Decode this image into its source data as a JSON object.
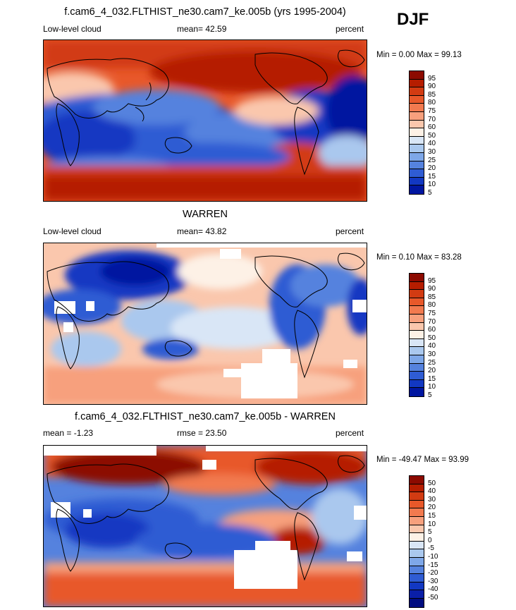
{
  "season": "DJF",
  "panels": [
    {
      "title": "f.cam6_4_032.FLTHIST_ne30.cam7_ke.005b (yrs 1995-2004)",
      "left_label": "Low-level cloud",
      "center_label": "mean=  42.59",
      "right_label": "percent",
      "minmax": "Min =   0.00 Max =  99.13",
      "colorbar": {
        "labels": [
          "95",
          "90",
          "85",
          "80",
          "75",
          "70",
          "60",
          "50",
          "40",
          "30",
          "25",
          "20",
          "15",
          "10",
          "5"
        ],
        "colors": [
          "#8c0a00",
          "#b51d00",
          "#d23b12",
          "#e8582a",
          "#f27a4f",
          "#f7a07d",
          "#fac7ad",
          "#fdf1e6",
          "#d9e6f6",
          "#aac8ee",
          "#7ea7e8",
          "#5582de",
          "#2f5cd3",
          "#1238c2",
          "#0016a0"
        ]
      }
    },
    {
      "title": "WARREN",
      "left_label": "Low-level cloud",
      "center_label": "mean=  43.82",
      "right_label": "percent",
      "minmax": "Min =   0.10 Max =  83.28",
      "colorbar": {
        "labels": [
          "95",
          "90",
          "85",
          "80",
          "75",
          "70",
          "60",
          "50",
          "40",
          "30",
          "25",
          "20",
          "15",
          "10",
          "5"
        ],
        "colors": [
          "#8c0a00",
          "#b51d00",
          "#d23b12",
          "#e8582a",
          "#f27a4f",
          "#f7a07d",
          "#fac7ad",
          "#fdf1e6",
          "#d9e6f6",
          "#aac8ee",
          "#7ea7e8",
          "#5582de",
          "#2f5cd3",
          "#1238c2",
          "#0016a0"
        ]
      }
    },
    {
      "title": "f.cam6_4_032.FLTHIST_ne30.cam7_ke.005b - WARREN",
      "left_label": "mean = -1.23",
      "center_label": "rmse =  23.50",
      "right_label": "percent",
      "minmax": "Min = -49.47 Max =  93.99",
      "colorbar": {
        "labels": [
          "50",
          "40",
          "30",
          "20",
          "15",
          "10",
          "5",
          "0",
          "-5",
          "-10",
          "-15",
          "-20",
          "-30",
          "-40",
          "-50"
        ],
        "colors": [
          "#8c0a00",
          "#b51d00",
          "#d23b12",
          "#e8582a",
          "#f27a4f",
          "#f7a07d",
          "#fac7ad",
          "#fdf1e6",
          "#d9e6f6",
          "#aac8ee",
          "#7ea7e8",
          "#5582de",
          "#2f5cd3",
          "#1238c2",
          "#0a1fa8",
          "#000c80"
        ]
      }
    }
  ]
}
